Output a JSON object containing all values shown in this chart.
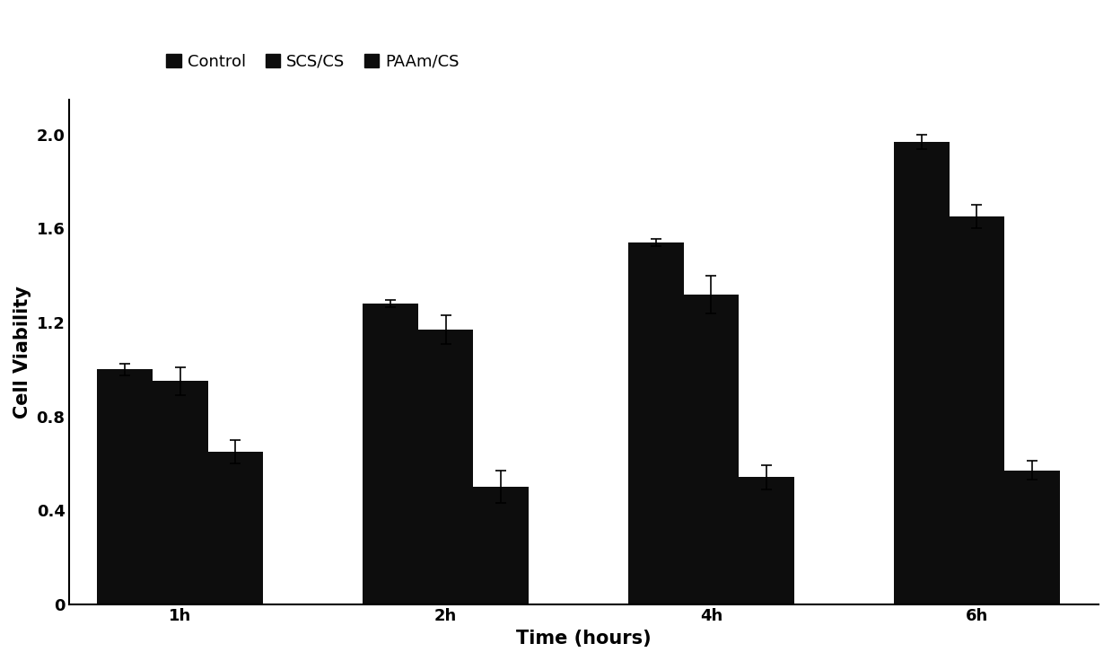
{
  "title": "",
  "xlabel": "Time (hours)",
  "ylabel": "Cell Viability",
  "groups": [
    "1h",
    "2h",
    "4h",
    "6h"
  ],
  "series": [
    "Control",
    "SCS/CS",
    "PAAm/CS"
  ],
  "values": {
    "Control": [
      1.0,
      1.28,
      1.54,
      1.97
    ],
    "SCS/CS": [
      0.95,
      1.17,
      1.32,
      1.65
    ],
    "PAAm/CS": [
      0.65,
      0.5,
      0.54,
      0.57
    ]
  },
  "errors": {
    "Control": [
      0.025,
      0.015,
      0.015,
      0.03
    ],
    "SCS/CS": [
      0.06,
      0.06,
      0.08,
      0.05
    ],
    "PAAm/CS": [
      0.05,
      0.07,
      0.05,
      0.04
    ]
  },
  "bar_color": "#0d0d0d",
  "ylim": [
    0,
    2.15
  ],
  "yticks": [
    0,
    0.4,
    0.8,
    1.2,
    1.6,
    2.0
  ],
  "bar_width": 0.25,
  "background_color": "#ffffff",
  "legend_fontsize": 13,
  "axis_fontsize": 15,
  "tick_fontsize": 13
}
